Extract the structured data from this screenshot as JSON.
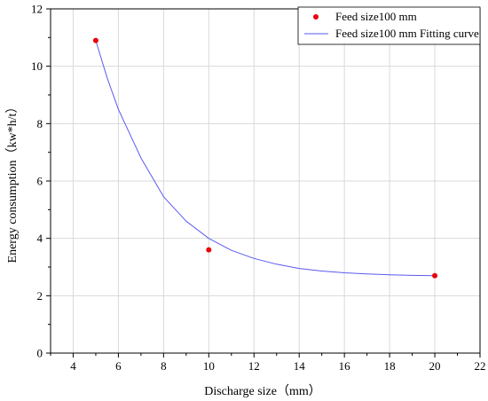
{
  "chart_data": {
    "type": "scatter",
    "xlabel": "Discharge size（mm）",
    "ylabel": "Energy consumption（kw*h/t）",
    "xlim": [
      3,
      22
    ],
    "ylim": [
      0,
      12
    ],
    "x_ticks": [
      4,
      6,
      8,
      10,
      12,
      14,
      16,
      18,
      20,
      22
    ],
    "y_ticks": [
      0,
      2,
      4,
      6,
      8,
      10,
      12
    ],
    "grid": true,
    "legend_position": "top-right",
    "series": [
      {
        "name": "Feed size100 mm",
        "kind": "scatter",
        "color": "#e8000b",
        "x": [
          5,
          10,
          20
        ],
        "y": [
          10.9,
          3.6,
          2.7
        ]
      },
      {
        "name": "Feed size100 mm Fitting curve",
        "kind": "line",
        "color": "#5a5af0",
        "x": [
          5,
          5.5,
          6,
          7,
          8,
          9,
          10,
          11,
          12,
          13,
          14,
          15,
          16,
          17,
          18,
          19,
          20
        ],
        "y": [
          10.9,
          9.6,
          8.5,
          6.8,
          5.45,
          4.6,
          4.0,
          3.58,
          3.3,
          3.1,
          2.95,
          2.86,
          2.8,
          2.76,
          2.73,
          2.71,
          2.7
        ]
      }
    ]
  }
}
